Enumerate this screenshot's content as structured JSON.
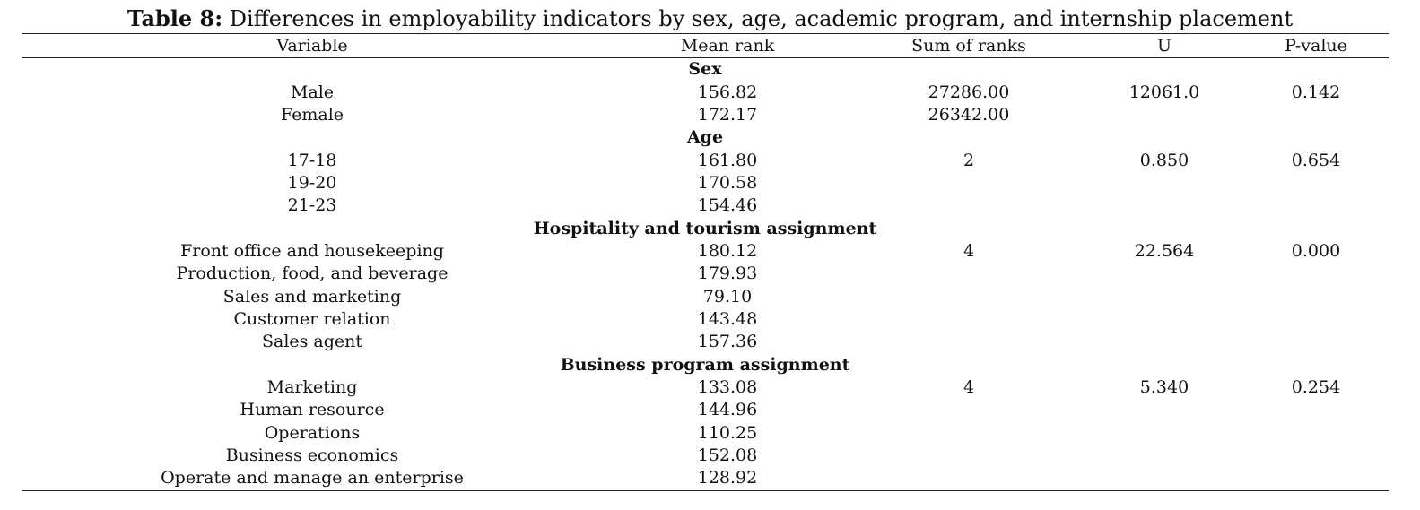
{
  "title": {
    "label": "Table 8:",
    "text": " Differences in employability indicators by sex, age, academic program, and internship placement"
  },
  "columns": [
    "Variable",
    "Mean rank",
    "Sum of ranks",
    "U",
    "P-value"
  ],
  "sections": [
    {
      "heading": "Sex",
      "rows": [
        {
          "variable": "Male",
          "mean_rank": "156.82",
          "sum_of_ranks": "27286.00",
          "u": "12061.0",
          "p_value": "0.142"
        },
        {
          "variable": "Female",
          "mean_rank": "172.17",
          "sum_of_ranks": "26342.00",
          "u": "",
          "p_value": ""
        }
      ]
    },
    {
      "heading": "Age",
      "rows": [
        {
          "variable": "17-18",
          "mean_rank": "161.80",
          "sum_of_ranks": "2",
          "u": "0.850",
          "p_value": "0.654"
        },
        {
          "variable": "19-20",
          "mean_rank": "170.58",
          "sum_of_ranks": "",
          "u": "",
          "p_value": ""
        },
        {
          "variable": "21-23",
          "mean_rank": "154.46",
          "sum_of_ranks": "",
          "u": "",
          "p_value": ""
        }
      ]
    },
    {
      "heading": "Hospitality and tourism assignment",
      "rows": [
        {
          "variable": "Front office and housekeeping",
          "mean_rank": "180.12",
          "sum_of_ranks": "4",
          "u": "22.564",
          "p_value": "0.000"
        },
        {
          "variable": "Production, food, and beverage",
          "mean_rank": "179.93",
          "sum_of_ranks": "",
          "u": "",
          "p_value": ""
        },
        {
          "variable": "Sales and marketing",
          "mean_rank": "79.10",
          "sum_of_ranks": "",
          "u": "",
          "p_value": ""
        },
        {
          "variable": "Customer relation",
          "mean_rank": "143.48",
          "sum_of_ranks": "",
          "u": "",
          "p_value": ""
        },
        {
          "variable": "Sales agent",
          "mean_rank": "157.36",
          "sum_of_ranks": "",
          "u": "",
          "p_value": ""
        }
      ]
    },
    {
      "heading": "Business program assignment",
      "rows": [
        {
          "variable": "Marketing",
          "mean_rank": "133.08",
          "sum_of_ranks": "4",
          "u": "5.340",
          "p_value": "0.254"
        },
        {
          "variable": "Human resource",
          "mean_rank": "144.96",
          "sum_of_ranks": "",
          "u": "",
          "p_value": ""
        },
        {
          "variable": "Operations",
          "mean_rank": "110.25",
          "sum_of_ranks": "",
          "u": "",
          "p_value": ""
        },
        {
          "variable": "Business economics",
          "mean_rank": "152.08",
          "sum_of_ranks": "",
          "u": "",
          "p_value": ""
        },
        {
          "variable": "Operate and manage an enterprise",
          "mean_rank": "128.92",
          "sum_of_ranks": "",
          "u": "",
          "p_value": ""
        }
      ]
    }
  ]
}
